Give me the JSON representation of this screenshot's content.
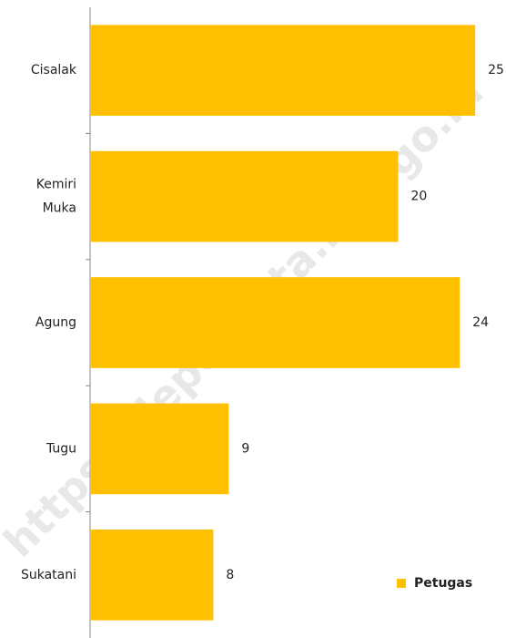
{
  "chart_data": {
    "type": "bar",
    "orientation": "horizontal",
    "categories": [
      "Cisalak",
      "Kemiri Muka",
      "Agung",
      "Tugu",
      "Sukatani"
    ],
    "series": [
      {
        "name": "Petugas",
        "color": "#FFC000",
        "values": [
          25,
          20,
          24,
          9,
          8
        ]
      }
    ],
    "xlim": [
      0,
      27
    ],
    "legend": "lower right",
    "watermark": "https://depokkota.bps.go.id"
  }
}
